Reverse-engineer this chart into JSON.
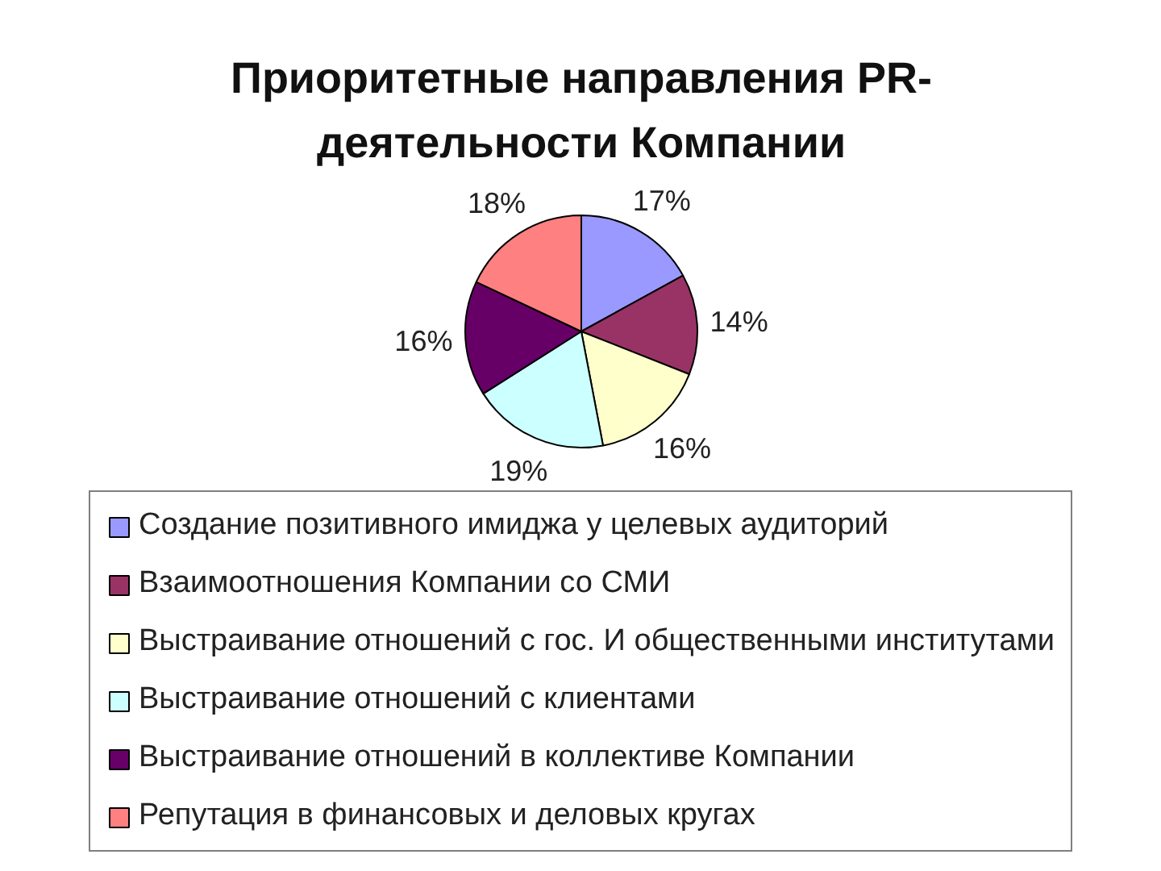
{
  "chart_data": {
    "type": "pie",
    "title": "Приоритетные направления PR-деятельности Компании",
    "categories": [
      "Создание позитивного имиджа у целевых аудиторий",
      "Взаимоотношения Компании со СМИ",
      "Выстраивание отношений с гос. И общественными институтами",
      "Выстраивание отношений с клиентами",
      "Выстраивание отношений в коллективе Компании",
      "Репутация в финансовых и деловых кругах"
    ],
    "values": [
      17,
      14,
      16,
      19,
      16,
      18
    ],
    "colors": [
      "#9999ff",
      "#993366",
      "#ffffcc",
      "#ccffff",
      "#660066",
      "#ff8080"
    ],
    "value_labels": [
      "17%",
      "14%",
      "16%",
      "19%",
      "16%",
      "18%"
    ],
    "legend": "bottom"
  }
}
